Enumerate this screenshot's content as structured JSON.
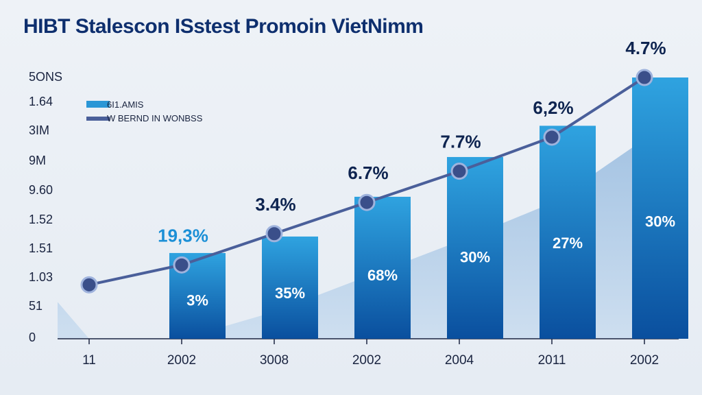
{
  "chart_data": {
    "type": "bar",
    "title": "HIBT Stalescon ISstest Promoin VietNimm",
    "y_axis_title": "5ONS",
    "y_tick_labels": [
      "0",
      "51",
      "1.03",
      "1.51",
      "1.52",
      "9.60",
      "9M",
      "3IM",
      "1.64"
    ],
    "categories": [
      "11",
      "2002",
      "3008",
      "2002",
      "2004",
      "2011",
      "2002"
    ],
    "series": [
      {
        "name": "6I1.AMIS",
        "kind": "bar",
        "color": "#2a96d6",
        "values": [
          null,
          1.51,
          1.8,
          2.5,
          3.2,
          3.75,
          4.6
        ],
        "labels": [
          null,
          "3%",
          "35%",
          "68%",
          "30%",
          "27%",
          "30%"
        ]
      },
      {
        "name": "W BERND IN WONBSS",
        "kind": "line",
        "color": "#4a5f9a",
        "values": [
          0.95,
          1.3,
          1.85,
          2.4,
          2.95,
          3.55,
          4.6
        ],
        "labels": [
          null,
          "19,3%",
          "3.4%",
          "6.7%",
          "7.7%",
          "6,2%",
          "4.7%"
        ]
      }
    ],
    "ylim": [
      0,
      4.6
    ],
    "grid": false,
    "legend_position": "top-left"
  },
  "legend": {
    "bar_label": "6I1.AMIS",
    "line_label": "W BERND IN WONBSS"
  }
}
